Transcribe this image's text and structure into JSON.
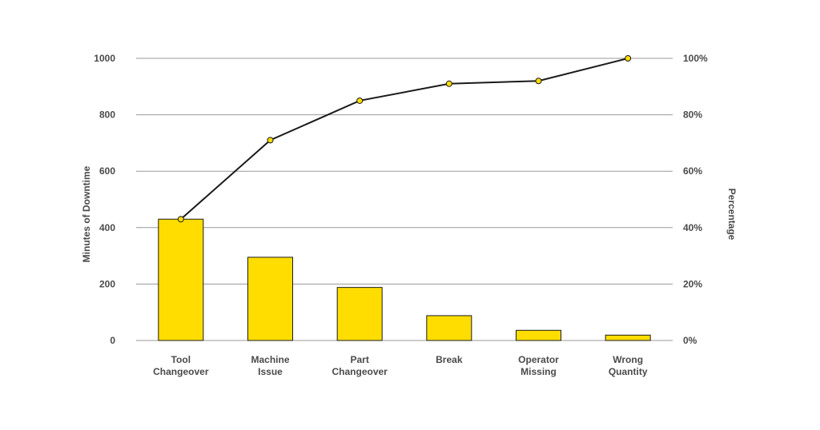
{
  "chart_data": {
    "type": "bar",
    "categories": [
      [
        "Tool",
        "Changeover"
      ],
      [
        "Machine",
        "Issue"
      ],
      [
        "Part",
        "Changeover"
      ],
      [
        "Break"
      ],
      [
        "Operator",
        "Missing"
      ],
      [
        "Wrong",
        "Quantity"
      ]
    ],
    "series": [
      {
        "kind": "bar",
        "axis": "left",
        "values": [
          430,
          295,
          188,
          88,
          36,
          19
        ]
      },
      {
        "kind": "line",
        "axis": "right",
        "values": [
          43,
          71,
          85,
          91,
          92,
          100
        ]
      }
    ],
    "ylabel": "Minutes of Downtime",
    "y2label": "Percentage",
    "ylim": [
      0,
      1000
    ],
    "y2lim": [
      0,
      100
    ],
    "yticks": [
      "0",
      "200",
      "400",
      "600",
      "800",
      "1000"
    ],
    "y2ticks": [
      "0%",
      "20%",
      "40%",
      "60%",
      "80%",
      "100%"
    ],
    "grid": true,
    "colors": {
      "bar": "#FFDD00",
      "bar_stroke": "#1a1a1a",
      "line": "#1a1a1a",
      "marker": "#FFDD00",
      "grid": "#9a9a9a"
    }
  }
}
